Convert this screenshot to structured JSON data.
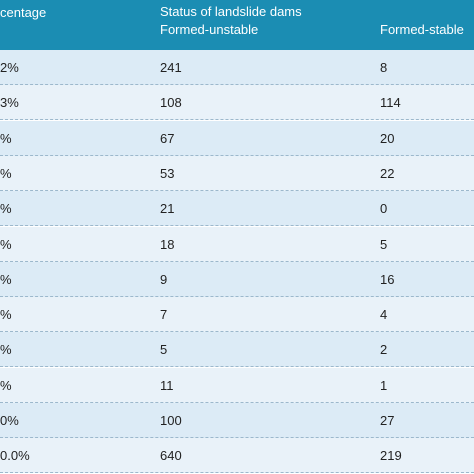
{
  "table": {
    "header": {
      "col0": "centage",
      "group": "Status of landslide dams",
      "col1": "Formed-unstable",
      "col2": "Formed-stable"
    },
    "rows": [
      [
        "2%",
        "241",
        "8"
      ],
      [
        "3%",
        "108",
        "114"
      ],
      [
        "%",
        "67",
        "20"
      ],
      [
        "%",
        "53",
        "22"
      ],
      [
        "%",
        "21",
        "0"
      ],
      [
        "%",
        "18",
        "5"
      ],
      [
        "%",
        "9",
        "16"
      ],
      [
        "%",
        "7",
        "4"
      ],
      [
        "%",
        "5",
        "2"
      ],
      [
        "%",
        "11",
        "1"
      ],
      [
        "0%",
        "100",
        "27"
      ],
      [
        "0.0%",
        "640",
        "219"
      ]
    ]
  }
}
